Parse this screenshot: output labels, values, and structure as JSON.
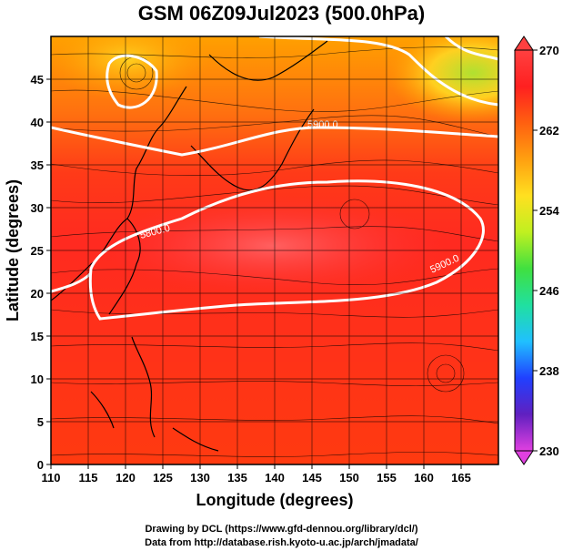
{
  "title": "GSM 06Z09Jul2023 (500.0hPa)",
  "x_axis": {
    "label": "Longitude (degrees)",
    "range": [
      110,
      170
    ],
    "ticks": [
      "110",
      "115",
      "120",
      "125",
      "130",
      "135",
      "140",
      "145",
      "150",
      "155",
      "160",
      "165"
    ]
  },
  "y_axis": {
    "label": "Latitude (degrees)",
    "range": [
      0,
      50
    ],
    "ticks": [
      "0",
      "5",
      "10",
      "15",
      "20",
      "25",
      "30",
      "35",
      "40",
      "45"
    ]
  },
  "colorbar": {
    "range": [
      230,
      270
    ],
    "ticks": [
      "230",
      "238",
      "246",
      "254",
      "262",
      "270"
    ],
    "colors": [
      "#e040e0",
      "#6020c0",
      "#2040ff",
      "#20c0ff",
      "#20e0a0",
      "#40e040",
      "#c0f020",
      "#ffe020",
      "#ffa010",
      "#ff6010",
      "#ff2020",
      "#ff4040"
    ]
  },
  "contours": [
    {
      "label": "5900.0"
    },
    {
      "label": "5800.0"
    },
    {
      "label": "5900.0"
    }
  ],
  "credits": [
    "Drawing by DCL (https://www.gfd-dennou.org/library/dcl/)",
    "Data from http://database.rish.kyoto-u.ac.jp/arch/jmadata/"
  ]
}
